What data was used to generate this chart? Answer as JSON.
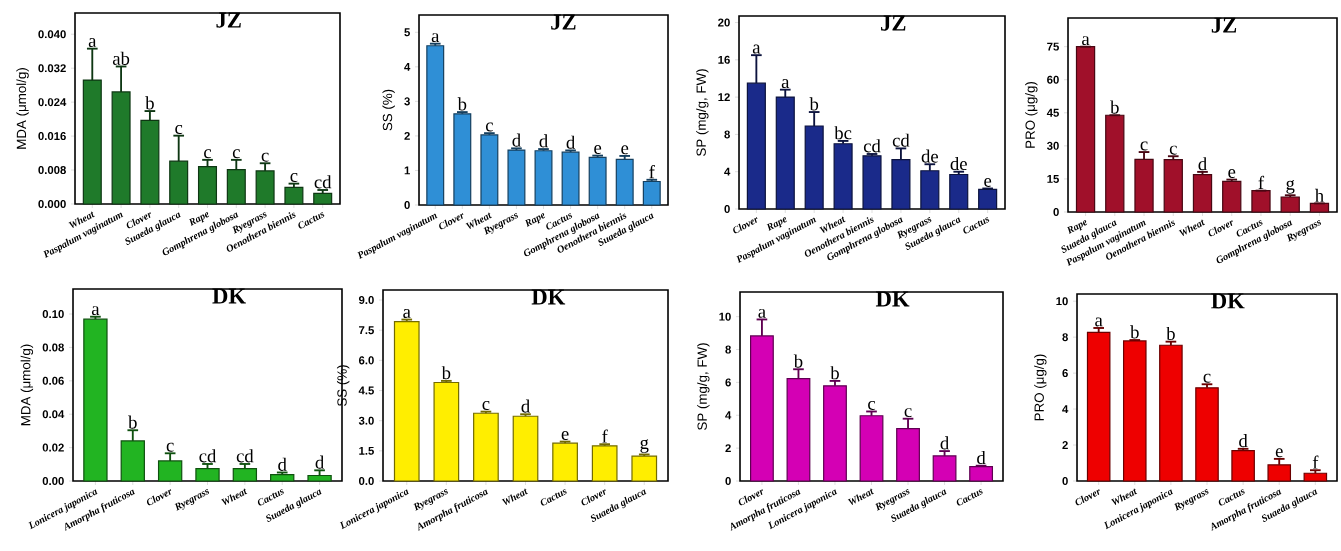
{
  "chart_data": [
    {
      "type": "bar",
      "title": "JZ",
      "ylabel": "MDA (μmol/g)",
      "color": "#1f7a2a",
      "categories": [
        "Wheat",
        "Paspalum vaginatum",
        "Clover",
        "Suaeda glauca",
        "Rape",
        "Gomphrena globosa",
        "Ryegrass",
        "Oenothera biennis",
        "Cactus"
      ],
      "values": [
        0.0292,
        0.0264,
        0.0197,
        0.0101,
        0.0088,
        0.0081,
        0.0078,
        0.0039,
        0.0025
      ],
      "errors": [
        0.0074,
        0.006,
        0.0022,
        0.006,
        0.0016,
        0.0023,
        0.0018,
        0.0009,
        0.0008
      ],
      "ylim": [
        0,
        0.045
      ],
      "yticks": [
        {
          "value": 0,
          "label": "0.000"
        },
        {
          "value": 0.008,
          "label": "0.008"
        },
        {
          "value": 0.016,
          "label": "0.016"
        },
        {
          "value": 0.024,
          "label": "0.024"
        },
        {
          "value": 0.032,
          "label": "0.032"
        },
        {
          "value": 0.04,
          "label": "0.040"
        }
      ],
      "annotations": [
        "a",
        "ab",
        "b",
        "c",
        "c",
        "c",
        "c",
        "c",
        "cd"
      ]
    },
    {
      "type": "bar",
      "title": "JZ",
      "ylabel": "SS (%)",
      "color": "#2f8fd6",
      "categories": [
        "Paspalum vaginatum",
        "Clover",
        "Wheat",
        "Ryegrass",
        "Rape",
        "Cactus",
        "Gomphrena globosa",
        "Oenothera biennis",
        "Suaeda glauca"
      ],
      "values": [
        4.61,
        2.64,
        2.03,
        1.59,
        1.57,
        1.53,
        1.38,
        1.32,
        0.68
      ],
      "errors": [
        0.06,
        0.05,
        0.05,
        0.05,
        0.05,
        0.05,
        0.05,
        0.1,
        0.05
      ],
      "ylim": [
        0,
        5.5
      ],
      "yticks": [
        0,
        1,
        2,
        3,
        4,
        5
      ],
      "annotations": [
        "a",
        "b",
        "c",
        "d",
        "d",
        "d",
        "e",
        "e",
        "f"
      ]
    },
    {
      "type": "bar",
      "title": "JZ",
      "ylabel": "SP (mg/g, FW)",
      "color": "#1a2a8a",
      "categories": [
        "Clover",
        "Rape",
        "Paspalum vaginatum",
        "Wheat",
        "Oenothera biennis",
        "Gomphrena globosa",
        "Ryegrass",
        "Suaeda glauca",
        "Cactus"
      ],
      "values": [
        13.5,
        12.0,
        8.9,
        7.0,
        5.7,
        5.3,
        4.1,
        3.7,
        2.1
      ],
      "errors": [
        3.0,
        0.8,
        1.5,
        0.3,
        0.2,
        1.2,
        0.7,
        0.3,
        0.1
      ],
      "ylim": [
        0,
        20.7
      ],
      "yticks": [
        0,
        4,
        8,
        12,
        16,
        20
      ],
      "annotations": [
        "a",
        "a",
        "b",
        "bc",
        "cd",
        "cd",
        "de",
        "de",
        "e"
      ]
    },
    {
      "type": "bar",
      "title": "JZ",
      "ylabel": "PRO (μg/g)",
      "color": "#a0102a",
      "categories": [
        "Rape",
        "Suaeda glauca",
        "Paspalum vaginatum",
        "Oenothera biennis",
        "Wheat",
        "Clover",
        "Cactus",
        "Gomphrena globosa",
        "Ryegrass"
      ],
      "values": [
        75,
        43.9,
        23.9,
        23.8,
        17.0,
        13.9,
        9.7,
        6.8,
        3.9
      ],
      "errors": [
        null,
        null,
        3.3,
        1.5,
        1.2,
        0.8,
        null,
        0.8,
        null
      ],
      "ylim": [
        0,
        88
      ],
      "yticks": [
        0,
        15,
        30,
        45,
        60,
        75
      ],
      "annotations": [
        "a",
        "b",
        "c",
        "c",
        "d",
        "e",
        "f",
        "g",
        "h"
      ]
    },
    {
      "type": "bar",
      "title": "DK",
      "ylabel": "MDA (μmol/g)",
      "color": "#22b422",
      "categories": [
        "Lonicera japonica",
        "Amorpha fruticosa",
        "Clover",
        "Ryegrass",
        "Wheat",
        "Cactus",
        "Suaeda glauca"
      ],
      "values": [
        0.0969,
        0.024,
        0.012,
        0.0074,
        0.0074,
        0.0038,
        0.0033
      ],
      "errors": [
        0.0015,
        0.0064,
        0.0046,
        0.0028,
        0.0028,
        0.0013,
        0.0031
      ],
      "ylim": [
        0,
        0.115
      ],
      "yticks": [
        {
          "value": 0,
          "label": "0.00"
        },
        {
          "value": 0.02,
          "label": "0.02"
        },
        {
          "value": 0.04,
          "label": "0.04"
        },
        {
          "value": 0.06,
          "label": "0.06"
        },
        {
          "value": 0.08,
          "label": "0.08"
        },
        {
          "value": 0.1,
          "label": "0.10"
        }
      ],
      "annotations": [
        "a",
        "b",
        "c",
        "cd",
        "cd",
        "d",
        "d"
      ]
    },
    {
      "type": "bar",
      "title": "DK",
      "ylabel": "SS (%)",
      "color": "#ffee00",
      "categories": [
        "Lonicera japonica",
        "Ryegrass",
        "Amorpha fruticosa",
        "Wheat",
        "Cactus",
        "Clover",
        "Suaeda glauca"
      ],
      "values": [
        7.93,
        4.9,
        3.37,
        3.22,
        1.88,
        1.75,
        1.24
      ],
      "errors": [
        0.1,
        0.08,
        0.08,
        0.1,
        0.08,
        0.08,
        0.08
      ],
      "ylim": [
        0,
        9.5
      ],
      "yticks": [
        {
          "value": 0,
          "label": "0.0"
        },
        {
          "value": 1.5,
          "label": "1.5"
        },
        {
          "value": 3,
          "label": "3.0"
        },
        {
          "value": 4.5,
          "label": "4.5"
        },
        {
          "value": 6,
          "label": "6.0"
        },
        {
          "value": 7.5,
          "label": "7.5"
        },
        {
          "value": 9,
          "label": "9.0"
        }
      ],
      "annotations": [
        "a",
        "b",
        "c",
        "d",
        "e",
        "f",
        "g"
      ]
    },
    {
      "type": "bar",
      "title": "DK",
      "ylabel": "SP (mg/g, FW)",
      "color": "#d400b4",
      "categories": [
        "Clover",
        "Amorpha fruticosa",
        "Lonicera japonica",
        "Wheat",
        "Ryegrass",
        "Suaeda glauca",
        "Cactus"
      ],
      "values": [
        8.83,
        6.23,
        5.79,
        3.97,
        3.19,
        1.53,
        0.88
      ],
      "errors": [
        1.0,
        0.57,
        0.3,
        0.26,
        0.6,
        0.29,
        0.05
      ],
      "ylim": [
        0,
        11.5
      ],
      "yticks": [
        0,
        2,
        4,
        6,
        8,
        10
      ],
      "annotations": [
        "a",
        "b",
        "b",
        "c",
        "c",
        "d",
        "d"
      ]
    },
    {
      "type": "bar",
      "title": "DK",
      "ylabel": "PRO (μg/g)",
      "color": "#ee0000",
      "categories": [
        "Clover",
        "Wheat",
        "Lonicera japonica",
        "Ryegrass",
        "Cactus",
        "Amorpha fruticosa",
        "Suaeda glauca"
      ],
      "values": [
        8.27,
        7.79,
        7.55,
        5.18,
        1.69,
        0.9,
        0.43
      ],
      "errors": [
        0.24,
        0.05,
        0.2,
        0.2,
        0.1,
        0.33,
        0.17
      ],
      "ylim": [
        0,
        10.4
      ],
      "yticks": [
        0,
        2,
        4,
        6,
        8,
        10
      ],
      "annotations": [
        "a",
        "b",
        "b",
        "c",
        "d",
        "e",
        "f"
      ]
    }
  ]
}
